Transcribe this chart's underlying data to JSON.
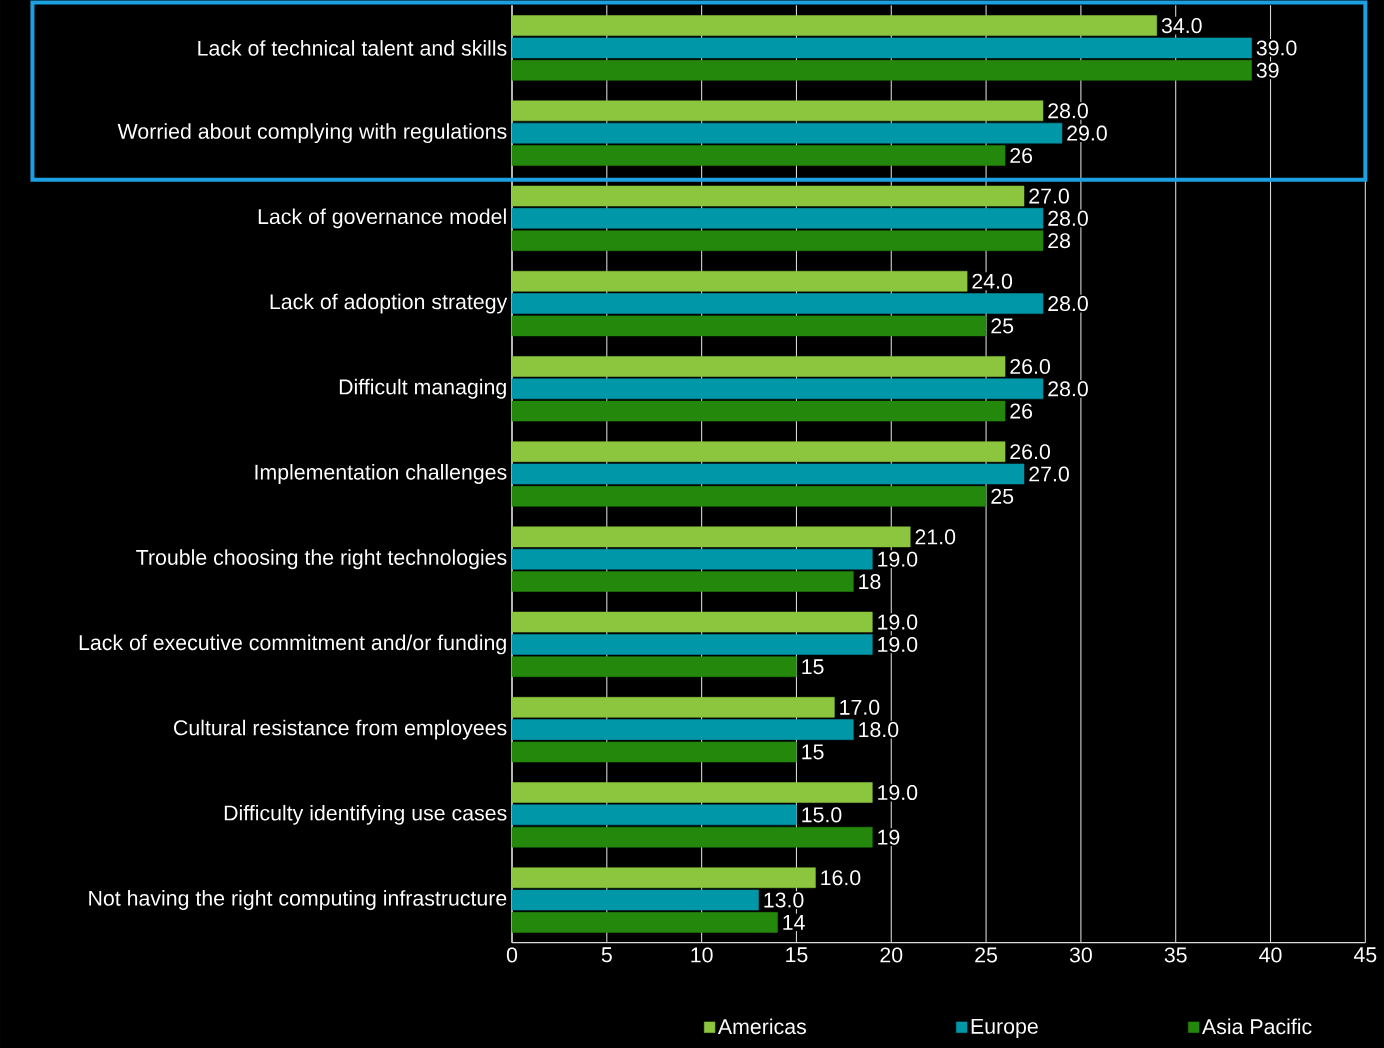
{
  "chart_data": {
    "type": "bar",
    "orientation": "horizontal",
    "categories": [
      "Lack of technical talent and skills",
      "Worried about complying with regulations",
      "Lack of governance model",
      "Lack of adoption strategy",
      "Difficult managing",
      "Implementation challenges",
      "Trouble choosing the right technologies",
      "Lack of executive commitment and/or funding",
      "Cultural resistance from employees",
      "Difficulty identifying use cases",
      "Not having the right computing infrastructure"
    ],
    "series": [
      {
        "name": "Americas",
        "color": "#8cc63e",
        "values": [
          34,
          28,
          27,
          24,
          26,
          26,
          21,
          19,
          17,
          19,
          16
        ],
        "value_labels": [
          "34.0",
          "28.0",
          "27.0",
          "24.0",
          "26.0",
          "26.0",
          "21.0",
          "19.0",
          "17.0",
          "19.0",
          "16.0"
        ]
      },
      {
        "name": "Europe",
        "color": "#0098a8",
        "values": [
          39,
          29,
          28,
          28,
          28,
          27,
          19,
          19,
          18,
          15,
          13
        ],
        "value_labels": [
          "39.0",
          "29.0",
          "28.0",
          "28.0",
          "28.0",
          "27.0",
          "19.0",
          "19.0",
          "18.0",
          "15.0",
          "13.0"
        ]
      },
      {
        "name": "Asia Pacific",
        "color": "#24880c",
        "values": [
          39,
          26,
          28,
          25,
          26,
          25,
          18,
          15,
          15,
          19,
          14
        ],
        "value_labels": [
          "39",
          "26",
          "28",
          "25",
          "26",
          "25",
          "18",
          "15",
          "15",
          "19",
          "14"
        ]
      }
    ],
    "xlim": [
      0,
      45
    ],
    "xticks": [
      0,
      5,
      10,
      15,
      20,
      25,
      30,
      35,
      40,
      45
    ],
    "grid": "x",
    "legend": "bottom"
  }
}
